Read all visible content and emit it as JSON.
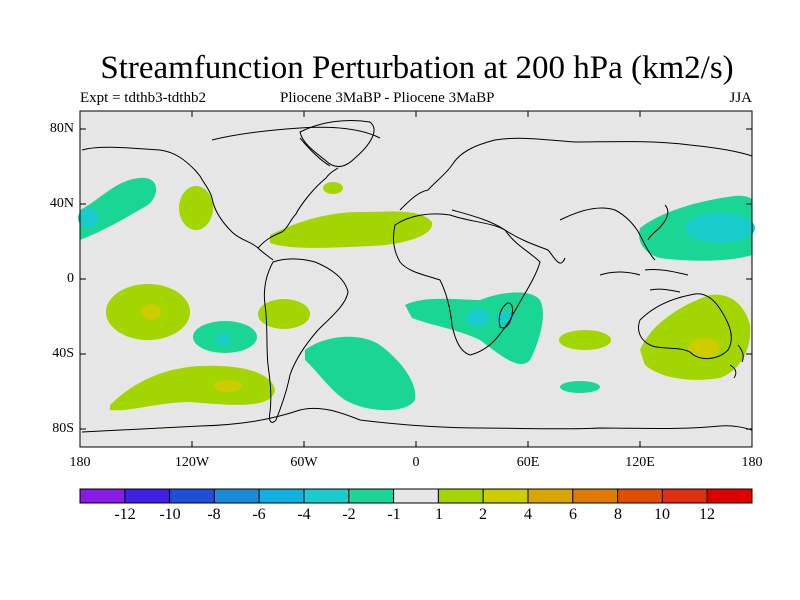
{
  "title": "Streamfunction Perturbation at 200 hPa (km2/s)",
  "left_label": "Expt = tdthb3-tdthb2",
  "center_label": "Pliocene   3MaBP - Pliocene   3MaBP",
  "right_label": "JJA",
  "lat_ticks": [
    "80N",
    "40N",
    "0",
    "40S",
    "80S"
  ],
  "lon_ticks": [
    "180",
    "120W",
    "60W",
    "0",
    "60E",
    "120E",
    "180"
  ],
  "colorbar": {
    "labels": [
      "-12",
      "-10",
      "-8",
      "-6",
      "-4",
      "-2",
      "-1",
      "1",
      "2",
      "4",
      "6",
      "8",
      "10",
      "12"
    ],
    "colors": [
      "#8a1ae6",
      "#3f1ee6",
      "#1f4fd9",
      "#1a8ad9",
      "#12b0de",
      "#18cccc",
      "#1ad694",
      "#e6e6e6",
      "#a3d600",
      "#cccc00",
      "#d9a600",
      "#e07a00",
      "#e04f00",
      "#e03014",
      "#e00000"
    ]
  },
  "colors": {
    "ocean": "#e6e6e6",
    "neg1": "#1ad694",
    "neg2": "#18cccc",
    "pos1": "#a3d600",
    "pos2": "#cccc00",
    "coast": "#000000"
  }
}
